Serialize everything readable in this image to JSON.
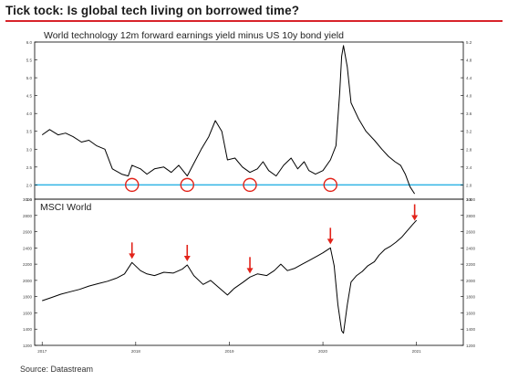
{
  "header": {
    "title": "Tick tock: Is global tech living on borrowed time?"
  },
  "footer": {
    "source": "Source: Datastream"
  },
  "colors": {
    "accent": "#d8232a",
    "line": "#000000",
    "reference": "#33b5e5",
    "marker": "#e2231a"
  },
  "chart_data": [
    {
      "type": "line",
      "title": "World technology 12m forward earnings yield minus US 10y bond yield",
      "ylim": [
        1.6,
        6.0
      ],
      "y_ticks": [
        1.6,
        2.0,
        2.5,
        3.0,
        3.5,
        4.0,
        4.5,
        5.0,
        5.5,
        6.0
      ],
      "y_tick_labels_left": [
        "1.6",
        "2.0",
        "2.5",
        "3.0",
        "3.5",
        "4.0",
        "4.5",
        "5.0",
        "5.5",
        "6.0"
      ],
      "y_tick_labels_right": [
        "1.6",
        "2.0",
        "2.4",
        "2.8",
        "3.2",
        "3.6",
        "4.0",
        "4.4",
        "4.8",
        "5.2"
      ],
      "xlim": [
        2016.92,
        2021.5
      ],
      "reference_line": {
        "y": 2.0
      },
      "series": [
        {
          "x": [
            2017.0,
            2017.08,
            2017.17,
            2017.25,
            2017.33,
            2017.42,
            2017.5,
            2017.58,
            2017.67,
            2017.75,
            2017.85,
            2017.92,
            2017.96,
            2018.05,
            2018.12,
            2018.2,
            2018.3,
            2018.38,
            2018.46,
            2018.55,
            2018.62,
            2018.7,
            2018.78,
            2018.85,
            2018.92,
            2018.98,
            2019.06,
            2019.14,
            2019.22,
            2019.3,
            2019.36,
            2019.42,
            2019.5,
            2019.58,
            2019.66,
            2019.73,
            2019.8,
            2019.85,
            2019.92,
            2020.0,
            2020.08,
            2020.14,
            2020.18,
            2020.2,
            2020.22,
            2020.26,
            2020.3,
            2020.38,
            2020.46,
            2020.55,
            2020.63,
            2020.7,
            2020.77,
            2020.83,
            2020.88,
            2020.93,
            2020.98
          ],
          "y": [
            3.4,
            3.55,
            3.4,
            3.45,
            3.35,
            3.2,
            3.25,
            3.1,
            3.0,
            2.45,
            2.3,
            2.25,
            2.55,
            2.45,
            2.3,
            2.45,
            2.5,
            2.35,
            2.55,
            2.25,
            2.6,
            3.0,
            3.35,
            3.8,
            3.5,
            2.7,
            2.75,
            2.5,
            2.35,
            2.45,
            2.65,
            2.4,
            2.25,
            2.55,
            2.75,
            2.45,
            2.65,
            2.4,
            2.3,
            2.4,
            2.7,
            3.1,
            4.6,
            5.6,
            5.9,
            5.3,
            4.3,
            3.85,
            3.5,
            3.25,
            3.0,
            2.8,
            2.65,
            2.55,
            2.3,
            1.95,
            1.75
          ]
        }
      ],
      "annotations": {
        "circled_lows_x": [
          2017.96,
          2018.55,
          2019.22,
          2020.08
        ]
      }
    },
    {
      "type": "line",
      "title": "MSCI World",
      "ylim": [
        1200,
        3000
      ],
      "y_ticks": [
        1200,
        1400,
        1600,
        1800,
        2000,
        2200,
        2400,
        2600,
        2800,
        3000
      ],
      "y_tick_labels": [
        "1200",
        "1400",
        "1600",
        "1800",
        "2000",
        "2200",
        "2400",
        "2600",
        "2800",
        "3000"
      ],
      "xlim": [
        2016.92,
        2021.5
      ],
      "x_ticks": [
        2017,
        2018,
        2019,
        2020,
        2021
      ],
      "x_tick_labels": [
        "2017",
        "2018",
        "2019",
        "2020",
        "2021"
      ],
      "series": [
        {
          "x": [
            2017.0,
            2017.1,
            2017.2,
            2017.3,
            2017.4,
            2017.5,
            2017.6,
            2017.7,
            2017.8,
            2017.88,
            2017.96,
            2018.05,
            2018.12,
            2018.2,
            2018.3,
            2018.4,
            2018.5,
            2018.55,
            2018.62,
            2018.72,
            2018.8,
            2018.88,
            2018.98,
            2019.05,
            2019.15,
            2019.22,
            2019.3,
            2019.4,
            2019.48,
            2019.55,
            2019.62,
            2019.7,
            2019.78,
            2019.86,
            2019.94,
            2020.0,
            2020.08,
            2020.12,
            2020.16,
            2020.2,
            2020.22,
            2020.26,
            2020.3,
            2020.36,
            2020.42,
            2020.48,
            2020.55,
            2020.6,
            2020.66,
            2020.72,
            2020.78,
            2020.84,
            2020.9,
            2020.96,
            2021.0
          ],
          "y": [
            1750,
            1790,
            1830,
            1860,
            1890,
            1930,
            1960,
            1990,
            2030,
            2080,
            2220,
            2120,
            2080,
            2060,
            2100,
            2090,
            2140,
            2190,
            2060,
            1950,
            2000,
            1920,
            1820,
            1900,
            1980,
            2040,
            2080,
            2060,
            2120,
            2200,
            2120,
            2150,
            2200,
            2250,
            2300,
            2340,
            2400,
            2180,
            1700,
            1380,
            1350,
            1700,
            1980,
            2060,
            2110,
            2180,
            2230,
            2310,
            2380,
            2420,
            2470,
            2530,
            2610,
            2690,
            2740
          ]
        }
      ],
      "annotations": {
        "arrow_peaks_x": [
          2017.96,
          2018.55,
          2019.22,
          2020.08,
          2020.98
        ]
      }
    }
  ]
}
